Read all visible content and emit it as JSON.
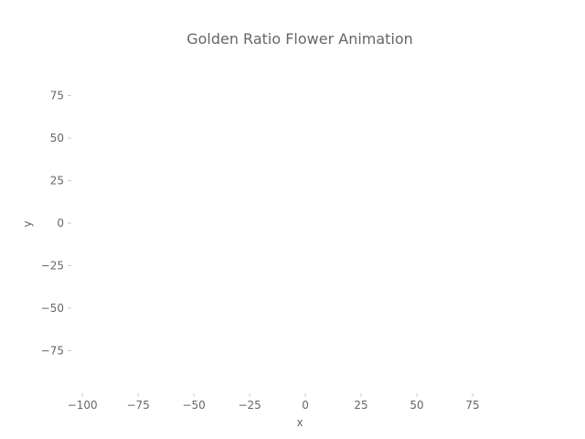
{
  "chart_data": {
    "type": "scatter",
    "title": "Golden Ratio Flower Animation",
    "xlabel": "x",
    "ylabel": "y",
    "xlim": [
      -105,
      100
    ],
    "ylim": [
      -100,
      100
    ],
    "x_ticks": [
      -100,
      -75,
      -50,
      -25,
      0,
      25,
      50,
      75
    ],
    "x_tick_labels": [
      "−100",
      "−75",
      "−50",
      "−25",
      "0",
      "25",
      "50",
      "75"
    ],
    "y_ticks": [
      75,
      50,
      25,
      0,
      -25,
      -50,
      -75
    ],
    "y_tick_labels": [
      "75",
      "50",
      "25",
      "0",
      "−25",
      "−50",
      "−75"
    ],
    "grid": false,
    "series": [
      {
        "x": [],
        "y": []
      }
    ]
  }
}
